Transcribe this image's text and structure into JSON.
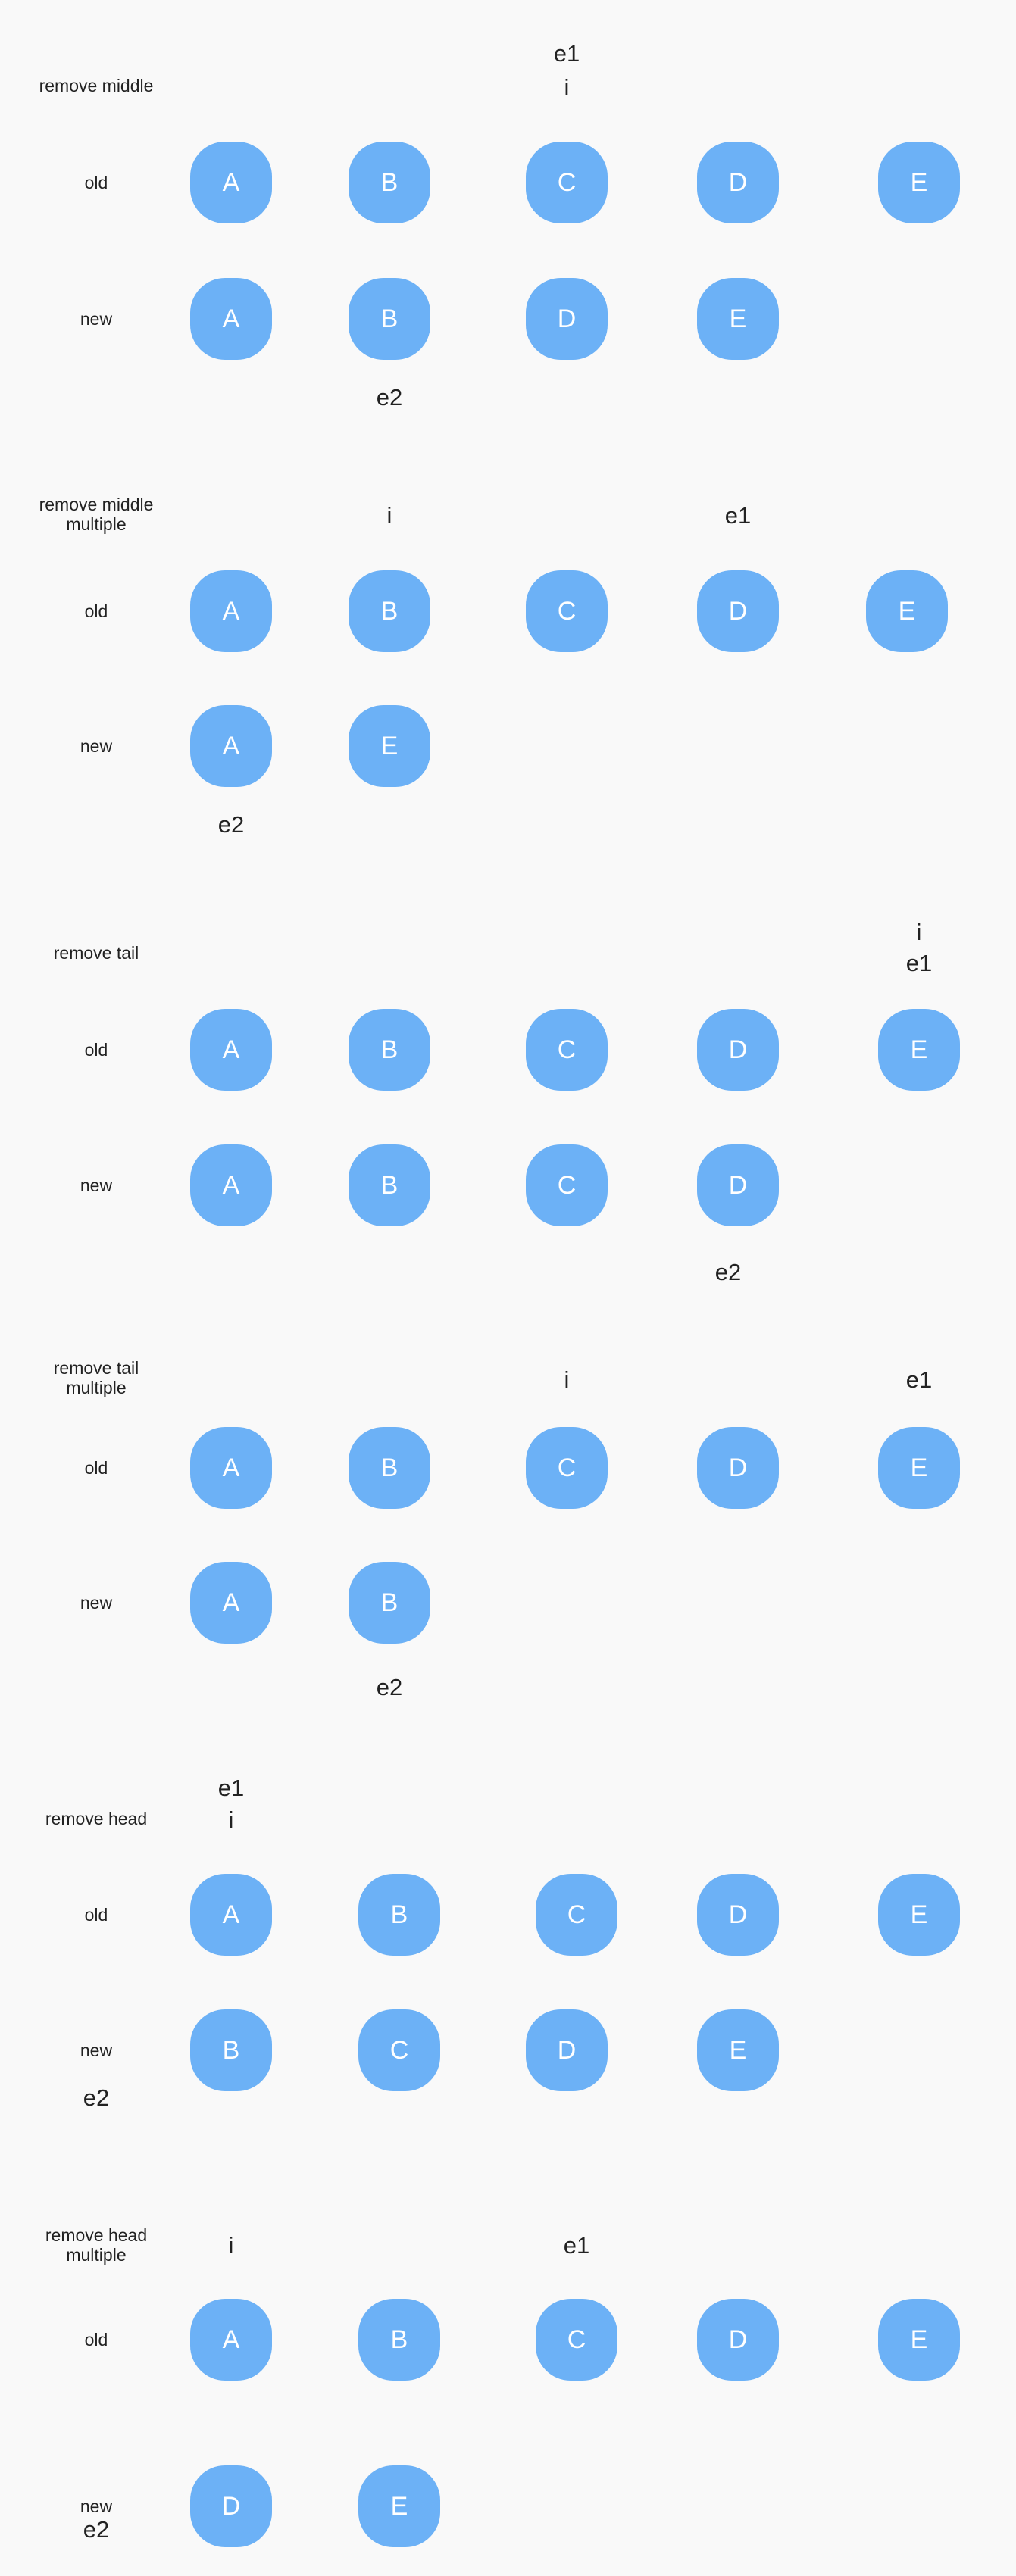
{
  "sections": [
    {
      "label": "remove middle",
      "old_label": "old",
      "new_label": "new",
      "old": [
        "A",
        "B",
        "C",
        "D",
        "E"
      ],
      "new": [
        "A",
        "B",
        "D",
        "E"
      ],
      "pointers": [
        {
          "name": "e1",
          "text": "e1"
        },
        {
          "name": "i",
          "text": "i"
        },
        {
          "name": "e2",
          "text": "e2"
        }
      ]
    },
    {
      "label": "remove middle\nmultiple",
      "old_label": "old",
      "new_label": "new",
      "old": [
        "A",
        "B",
        "C",
        "D",
        "E"
      ],
      "new": [
        "A",
        "E"
      ],
      "pointers": [
        {
          "name": "i",
          "text": "i"
        },
        {
          "name": "e1",
          "text": "e1"
        },
        {
          "name": "e2",
          "text": "e2"
        }
      ]
    },
    {
      "label": "remove tail",
      "old_label": "old",
      "new_label": "new",
      "old": [
        "A",
        "B",
        "C",
        "D",
        "E"
      ],
      "new": [
        "A",
        "B",
        "C",
        "D"
      ],
      "pointers": [
        {
          "name": "i",
          "text": "i"
        },
        {
          "name": "e1",
          "text": "e1"
        },
        {
          "name": "e2",
          "text": "e2"
        }
      ]
    },
    {
      "label": "remove tail\nmultiple",
      "old_label": "old",
      "new_label": "new",
      "old": [
        "A",
        "B",
        "C",
        "D",
        "E"
      ],
      "new": [
        "A",
        "B"
      ],
      "pointers": [
        {
          "name": "i",
          "text": "i"
        },
        {
          "name": "e1",
          "text": "e1"
        },
        {
          "name": "e2",
          "text": "e2"
        }
      ]
    },
    {
      "label": "remove head",
      "old_label": "old",
      "new_label": "new",
      "old": [
        "A",
        "B",
        "C",
        "D",
        "E"
      ],
      "new": [
        "B",
        "C",
        "D",
        "E"
      ],
      "pointers": [
        {
          "name": "e1",
          "text": "e1"
        },
        {
          "name": "i",
          "text": "i"
        },
        {
          "name": "e2",
          "text": "e2"
        }
      ]
    },
    {
      "label": "remove head\nmultiple",
      "old_label": "old",
      "new_label": "new",
      "old": [
        "A",
        "B",
        "C",
        "D",
        "E"
      ],
      "new": [
        "D",
        "E"
      ],
      "pointers": [
        {
          "name": "i",
          "text": "i"
        },
        {
          "name": "e1",
          "text": "e1"
        },
        {
          "name": "e2",
          "text": "e2"
        }
      ]
    }
  ],
  "colors": {
    "node_fill": "#6cb1f6",
    "node_text": "#ffffff",
    "background": "#f9f9f9",
    "label_text": "#222222"
  }
}
